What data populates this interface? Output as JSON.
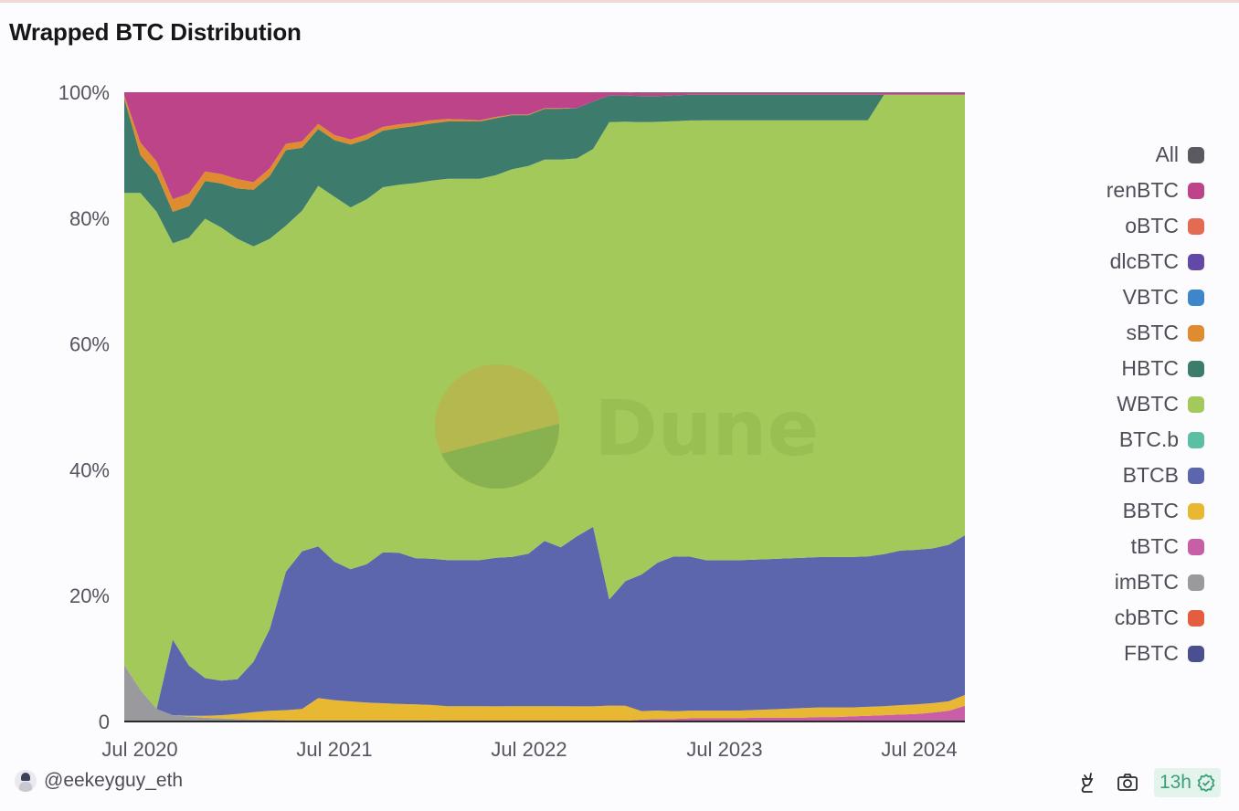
{
  "header": {
    "title": "Wrapped BTC Distribution"
  },
  "footer": {
    "username": "@eekeyguy_eth",
    "refresh_badge": "13h",
    "icons": [
      "plug-icon",
      "camera-icon",
      "check-badge-icon"
    ]
  },
  "watermark": {
    "text": "Dune"
  },
  "legend": [
    {
      "label": "All",
      "color": "#5a5a60"
    },
    {
      "label": "renBTC",
      "color": "#bd4488"
    },
    {
      "label": "oBTC",
      "color": "#e36a53"
    },
    {
      "label": "dlcBTC",
      "color": "#6349a6"
    },
    {
      "label": "VBTC",
      "color": "#3c86c9"
    },
    {
      "label": "sBTC",
      "color": "#df8b2f"
    },
    {
      "label": "HBTC",
      "color": "#3d7b6c"
    },
    {
      "label": "WBTC",
      "color": "#a2c95a"
    },
    {
      "label": "BTC.b",
      "color": "#5bbfa3"
    },
    {
      "label": "BTCB",
      "color": "#5c66ad"
    },
    {
      "label": "BBTC",
      "color": "#e8b833"
    },
    {
      "label": "tBTC",
      "color": "#c75ea6"
    },
    {
      "label": "imBTC",
      "color": "#9a9a9e"
    },
    {
      "label": "cbBTC",
      "color": "#e45d3e"
    },
    {
      "label": "FBTC",
      "color": "#4a4f92"
    }
  ],
  "chart_data": {
    "type": "area",
    "stacked": true,
    "normalized": true,
    "title": "Wrapped BTC Distribution",
    "xlabel": "",
    "ylabel": "",
    "ylim": [
      0,
      100
    ],
    "y_ticks": [
      "0",
      "20%",
      "40%",
      "60%",
      "80%",
      "100%"
    ],
    "x_ticks": [
      "Jul 2020",
      "Jul 2021",
      "Jul 2022",
      "Jul 2023",
      "Jul 2024"
    ],
    "x": [
      "2020-05",
      "2020-06",
      "2020-07",
      "2020-08",
      "2020-09",
      "2020-10",
      "2020-11",
      "2020-12",
      "2021-01",
      "2021-02",
      "2021-03",
      "2021-04",
      "2021-05",
      "2021-06",
      "2021-07",
      "2021-08",
      "2021-09",
      "2021-10",
      "2021-11",
      "2021-12",
      "2022-01",
      "2022-02",
      "2022-03",
      "2022-04",
      "2022-05",
      "2022-06",
      "2022-07",
      "2022-08",
      "2022-09",
      "2022-10",
      "2022-11",
      "2022-12",
      "2023-01",
      "2023-02",
      "2023-03",
      "2023-04",
      "2023-05",
      "2023-06",
      "2023-07",
      "2023-08",
      "2023-09",
      "2023-10",
      "2023-11",
      "2023-12",
      "2024-01",
      "2024-02",
      "2024-03",
      "2024-04",
      "2024-05",
      "2024-06",
      "2024-07",
      "2024-08",
      "2024-09"
    ],
    "series": [
      {
        "name": "imBTC",
        "values": [
          9,
          5,
          2,
          1,
          0.8,
          0.6,
          0.5,
          0.4,
          0.3,
          0.3,
          0.2,
          0.2,
          0.2,
          0.2,
          0.2,
          0.2,
          0.2,
          0.2,
          0.2,
          0.2,
          0.1,
          0.1,
          0.1,
          0.1,
          0.1,
          0.1,
          0.1,
          0.1,
          0.1,
          0.1,
          0.1,
          0.1,
          0.1,
          0.1,
          0.1,
          0.1,
          0.1,
          0.1,
          0.1,
          0.1,
          0.1,
          0.1,
          0.1,
          0.1,
          0.1,
          0.1,
          0.1,
          0.1,
          0.1,
          0.1,
          0.1,
          0.1,
          0.1
        ]
      },
      {
        "name": "tBTC",
        "values": [
          0,
          0,
          0,
          0,
          0,
          0,
          0,
          0,
          0,
          0,
          0,
          0,
          0,
          0,
          0,
          0,
          0,
          0,
          0,
          0,
          0,
          0,
          0,
          0,
          0,
          0,
          0,
          0,
          0,
          0,
          0,
          0,
          0.2,
          0.3,
          0.3,
          0.4,
          0.4,
          0.4,
          0.4,
          0.5,
          0.5,
          0.5,
          0.5,
          0.6,
          0.6,
          0.7,
          0.8,
          0.9,
          1.0,
          1.1,
          1.3,
          1.6,
          2.4
        ]
      },
      {
        "name": "BBTC",
        "values": [
          0,
          0,
          0,
          0,
          0.1,
          0.3,
          0.5,
          0.8,
          1.2,
          1.4,
          1.6,
          1.8,
          3.5,
          3.2,
          3.0,
          2.8,
          2.7,
          2.6,
          2.5,
          2.4,
          2.3,
          2.3,
          2.3,
          2.3,
          2.3,
          2.3,
          2.3,
          2.3,
          2.3,
          2.3,
          2.3,
          2.3,
          1.3,
          1.3,
          1.2,
          1.2,
          1.2,
          1.2,
          1.2,
          1.2,
          1.3,
          1.4,
          1.5,
          1.5,
          1.5,
          1.4,
          1.4,
          1.4,
          1.5,
          1.5,
          1.5,
          1.5,
          1.7
        ]
      },
      {
        "name": "BTCB",
        "values": [
          0,
          0,
          0,
          12,
          8,
          6,
          5.5,
          5.5,
          8,
          13,
          22,
          25,
          24,
          22,
          21,
          22,
          24,
          24,
          23,
          23,
          23,
          23,
          23,
          23.5,
          23.5,
          24,
          26,
          25,
          27,
          28.5,
          16,
          19,
          21,
          23,
          24,
          24,
          23.5,
          23.5,
          23.5,
          23.5,
          23.5,
          23.5,
          23.5,
          23.5,
          23.5,
          23.5,
          23.5,
          24,
          24.5,
          24.5,
          24.5,
          24.8,
          25.3
        ]
      },
      {
        "name": "WBTC",
        "values": [
          75,
          79,
          79,
          63,
          68,
          73,
          72,
          70,
          66,
          62,
          55,
          54,
          57,
          58,
          57.5,
          58,
          58,
          58.5,
          59,
          59.5,
          60,
          60,
          60,
          60.5,
          61,
          61,
          60,
          61,
          60,
          60,
          72,
          70,
          69.5,
          68.5,
          67.5,
          68,
          68.7,
          68.7,
          68.7,
          68.7,
          68.6,
          68.5,
          68.4,
          68.3,
          68.2,
          68.2,
          68.1,
          72.5,
          72.3,
          72.1,
          71.8,
          71.3,
          69.8
        ]
      },
      {
        "name": "HBTC",
        "values": [
          15,
          6,
          6,
          5,
          5,
          6,
          7,
          8,
          9,
          10,
          12,
          10,
          9,
          9,
          10,
          9.5,
          9,
          9,
          9,
          9,
          9,
          9,
          9,
          9,
          8.5,
          8,
          8,
          8,
          8,
          7.5,
          4,
          4,
          4,
          4,
          4,
          4,
          4,
          4,
          4,
          4,
          4,
          4,
          4,
          4,
          4,
          4,
          4,
          0,
          0,
          0,
          0,
          0,
          0
        ]
      },
      {
        "name": "sBTC",
        "values": [
          0.5,
          2,
          2,
          2,
          2,
          1.5,
          1.5,
          1.5,
          1.2,
          1.2,
          1.0,
          1.0,
          0.8,
          0.8,
          0.8,
          0.8,
          0.6,
          0.6,
          0.5,
          0.5,
          0.4,
          0.3,
          0.2,
          0.2,
          0.1,
          0.1,
          0.1,
          0.1,
          0,
          0,
          0,
          0,
          0,
          0,
          0,
          0,
          0,
          0,
          0,
          0,
          0,
          0,
          0,
          0,
          0,
          0,
          0,
          0,
          0,
          0,
          0,
          0,
          0
        ]
      },
      {
        "name": "renBTC",
        "values": [
          0.5,
          8,
          11,
          17,
          16.1,
          12.6,
          13,
          13.8,
          14.3,
          12.1,
          8.2,
          7.8,
          5.0,
          6.8,
          7.5,
          6.7,
          5.5,
          5.1,
          4.8,
          4.4,
          4.2,
          4.3,
          4.4,
          3.9,
          3.5,
          3.5,
          2.5,
          2.5,
          2.5,
          1.5,
          0.5,
          0.5,
          0.5,
          0.5,
          0.4,
          0.3,
          0.3,
          0.3,
          0.3,
          0.3,
          0.3,
          0.3,
          0.3,
          0.3,
          0.3,
          0.3,
          0.3,
          0.3,
          0.3,
          0.3,
          0.3,
          0.3,
          0.3
        ]
      },
      {
        "name": "All",
        "values": [
          0,
          0,
          0,
          0,
          0,
          0,
          0,
          0,
          0,
          0,
          0,
          0,
          0,
          0,
          0,
          0,
          0,
          0,
          0,
          0,
          0,
          0,
          0,
          0,
          0,
          0,
          0,
          0,
          0,
          0,
          0,
          0,
          0.1,
          0.1,
          0.1,
          0.1,
          0.1,
          0.1,
          0.1,
          0.1,
          0.1,
          0.1,
          0.1,
          0.1,
          0.1,
          0.1,
          0.1,
          0.1,
          0.1,
          0.1,
          0.1,
          0.1,
          0.1
        ]
      }
    ],
    "legend_position": "right",
    "grid": false,
    "watermark": "Dune"
  }
}
